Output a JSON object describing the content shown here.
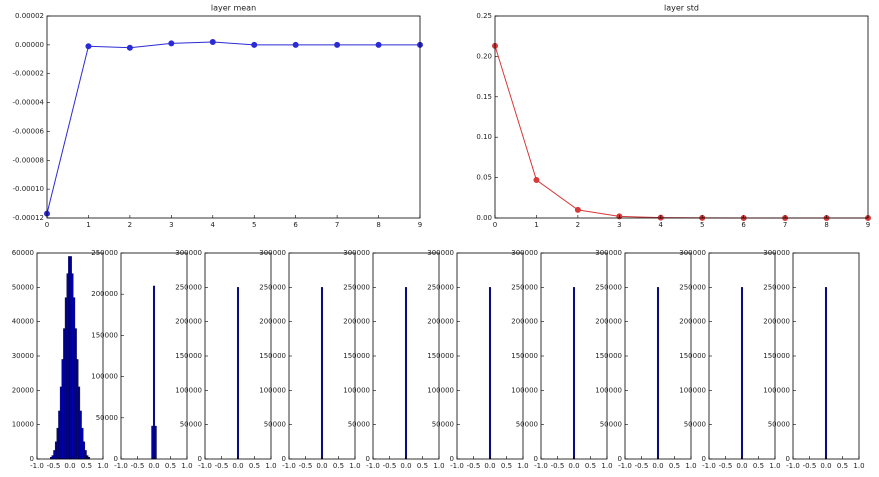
{
  "chart_data": [
    {
      "type": "line",
      "title": "layer mean",
      "color": "#2b2bd6",
      "x": [
        0,
        1,
        2,
        3,
        4,
        5,
        6,
        7,
        8,
        9
      ],
      "values": [
        -0.000117,
        -1e-06,
        -2e-06,
        1e-06,
        2e-06,
        0,
        0,
        0,
        0,
        0
      ],
      "xlim": [
        0,
        9
      ],
      "xticks": [
        0,
        1,
        2,
        3,
        4,
        5,
        6,
        7,
        8,
        9
      ],
      "ylim": [
        -0.00012,
        2e-05
      ],
      "yticks": [
        {
          "value": -0.00012,
          "label": "-0.00012"
        },
        {
          "value": -0.0001,
          "label": "-0.00010"
        },
        {
          "value": -8e-05,
          "label": "-0.00008"
        },
        {
          "value": -6e-05,
          "label": "-0.00006"
        },
        {
          "value": -4e-05,
          "label": "-0.00004"
        },
        {
          "value": -2e-05,
          "label": "-0.00002"
        },
        {
          "value": 0,
          "label": "0.00000"
        },
        {
          "value": 2e-05,
          "label": "0.00002"
        }
      ]
    },
    {
      "type": "line",
      "title": "layer std",
      "color": "#d63a3a",
      "x": [
        0,
        1,
        2,
        3,
        4,
        5,
        6,
        7,
        8,
        9
      ],
      "values": [
        0.213,
        0.047,
        0.01,
        0.002,
        0.0005,
        0.0001,
        0,
        0,
        0,
        0
      ],
      "xlim": [
        0,
        9
      ],
      "xticks": [
        0,
        1,
        2,
        3,
        4,
        5,
        6,
        7,
        8,
        9
      ],
      "ylim": [
        0,
        0.25
      ],
      "yticks": [
        {
          "value": 0,
          "label": "0.00"
        },
        {
          "value": 0.05,
          "label": "0.05"
        },
        {
          "value": 0.1,
          "label": "0.10"
        },
        {
          "value": 0.15,
          "label": "0.15"
        },
        {
          "value": 0.2,
          "label": "0.20"
        },
        {
          "value": 0.25,
          "label": "0.25"
        }
      ]
    },
    {
      "type": "histogram",
      "color": "#0000b0",
      "bins": [
        -0.6,
        -0.55,
        -0.5,
        -0.45,
        -0.4,
        -0.35,
        -0.3,
        -0.25,
        -0.2,
        -0.15,
        -0.1,
        -0.05,
        0,
        0.05,
        0.1,
        0.15,
        0.2,
        0.25,
        0.3,
        0.35,
        0.4,
        0.45,
        0.5,
        0.55,
        0.6
      ],
      "values": [
        500,
        1000,
        2500,
        5000,
        9000,
        14000,
        21000,
        29000,
        38000,
        47000,
        54000,
        59000,
        59000,
        54000,
        47000,
        38000,
        29000,
        21000,
        14000,
        9000,
        5000,
        2500,
        1000,
        500
      ],
      "xlim": [
        -1,
        1
      ],
      "xticks": [
        {
          "value": -1,
          "label": "-1.0"
        },
        {
          "value": -0.5,
          "label": "-0.5"
        },
        {
          "value": 0,
          "label": "0.0"
        },
        0.5,
        {
          "value": 1,
          "label": "1.0"
        }
      ],
      "ylim": [
        0,
        60000
      ],
      "yticks": [
        0,
        10000,
        20000,
        30000,
        40000,
        50000,
        60000
      ]
    },
    {
      "type": "histogram",
      "color": "#0000b0",
      "bins": [
        -0.075,
        -0.025,
        0.025,
        0.075
      ],
      "values": [
        40000,
        210000,
        40000
      ],
      "xlim": [
        -1,
        1
      ],
      "xticks": [
        {
          "value": -1,
          "label": "-1.0"
        },
        {
          "value": -0.5,
          "label": "-0.5"
        },
        {
          "value": 0,
          "label": "0.0"
        },
        0.5,
        {
          "value": 1,
          "label": "1.0"
        }
      ],
      "ylim": [
        0,
        250000
      ],
      "yticks": [
        0,
        50000,
        100000,
        150000,
        200000,
        250000
      ]
    },
    {
      "type": "histogram",
      "color": "#0000b0",
      "bins": [
        -0.025,
        0.025
      ],
      "values": [
        250000
      ],
      "xlim": [
        -1,
        1
      ],
      "xticks": [
        {
          "value": -1,
          "label": "-1.0"
        },
        {
          "value": -0.5,
          "label": "-0.5"
        },
        {
          "value": 0,
          "label": "0.0"
        },
        0.5,
        {
          "value": 1,
          "label": "1.0"
        }
      ],
      "ylim": [
        0,
        300000
      ],
      "yticks": [
        0,
        50000,
        100000,
        150000,
        200000,
        250000,
        300000
      ]
    },
    {
      "type": "histogram",
      "color": "#0000b0",
      "bins": [
        -0.025,
        0.025
      ],
      "values": [
        250000
      ],
      "xlim": [
        -1,
        1
      ],
      "xticks": [
        {
          "value": -1,
          "label": "-1.0"
        },
        {
          "value": -0.5,
          "label": "-0.5"
        },
        {
          "value": 0,
          "label": "0.0"
        },
        0.5,
        {
          "value": 1,
          "label": "1.0"
        }
      ],
      "ylim": [
        0,
        300000
      ],
      "yticks": [
        0,
        50000,
        100000,
        150000,
        200000,
        250000,
        300000
      ]
    },
    {
      "type": "histogram",
      "color": "#0000b0",
      "bins": [
        -0.025,
        0.025
      ],
      "values": [
        250000
      ],
      "xlim": [
        -1,
        1
      ],
      "xticks": [
        {
          "value": -1,
          "label": "-1.0"
        },
        {
          "value": -0.5,
          "label": "-0.5"
        },
        {
          "value": 0,
          "label": "0.0"
        },
        0.5,
        {
          "value": 1,
          "label": "1.0"
        }
      ],
      "ylim": [
        0,
        300000
      ],
      "yticks": [
        0,
        50000,
        100000,
        150000,
        200000,
        250000,
        300000
      ]
    },
    {
      "type": "histogram",
      "color": "#0000b0",
      "bins": [
        -0.025,
        0.025
      ],
      "values": [
        250000
      ],
      "xlim": [
        -1,
        1
      ],
      "xticks": [
        {
          "value": -1,
          "label": "-1.0"
        },
        {
          "value": -0.5,
          "label": "-0.5"
        },
        {
          "value": 0,
          "label": "0.0"
        },
        0.5,
        {
          "value": 1,
          "label": "1.0"
        }
      ],
      "ylim": [
        0,
        300000
      ],
      "yticks": [
        0,
        50000,
        100000,
        150000,
        200000,
        250000,
        300000
      ]
    },
    {
      "type": "histogram",
      "color": "#0000b0",
      "bins": [
        -0.025,
        0.025
      ],
      "values": [
        250000
      ],
      "xlim": [
        -1,
        1
      ],
      "xticks": [
        {
          "value": -1,
          "label": "-1.0"
        },
        {
          "value": -0.5,
          "label": "-0.5"
        },
        {
          "value": 0,
          "label": "0.0"
        },
        0.5,
        {
          "value": 1,
          "label": "1.0"
        }
      ],
      "ylim": [
        0,
        300000
      ],
      "yticks": [
        0,
        50000,
        100000,
        150000,
        200000,
        250000,
        300000
      ]
    },
    {
      "type": "histogram",
      "color": "#0000b0",
      "bins": [
        -0.025,
        0.025
      ],
      "values": [
        250000
      ],
      "xlim": [
        -1,
        1
      ],
      "xticks": [
        {
          "value": -1,
          "label": "-1.0"
        },
        {
          "value": -0.5,
          "label": "-0.5"
        },
        {
          "value": 0,
          "label": "0.0"
        },
        0.5,
        {
          "value": 1,
          "label": "1.0"
        }
      ],
      "ylim": [
        0,
        300000
      ],
      "yticks": [
        0,
        50000,
        100000,
        150000,
        200000,
        250000,
        300000
      ]
    },
    {
      "type": "histogram",
      "color": "#0000b0",
      "bins": [
        -0.025,
        0.025
      ],
      "values": [
        250000
      ],
      "xlim": [
        -1,
        1
      ],
      "xticks": [
        {
          "value": -1,
          "label": "-1.0"
        },
        {
          "value": -0.5,
          "label": "-0.5"
        },
        {
          "value": 0,
          "label": "0.0"
        },
        0.5,
        {
          "value": 1,
          "label": "1.0"
        }
      ],
      "ylim": [
        0,
        300000
      ],
      "yticks": [
        0,
        50000,
        100000,
        150000,
        200000,
        250000,
        300000
      ]
    },
    {
      "type": "histogram",
      "color": "#0000b0",
      "bins": [
        -0.025,
        0.025
      ],
      "values": [
        250000
      ],
      "xlim": [
        -1,
        1
      ],
      "xticks": [
        {
          "value": -1,
          "label": "-1.0"
        },
        {
          "value": -0.5,
          "label": "-0.5"
        },
        {
          "value": 0,
          "label": "0.0"
        },
        0.5,
        {
          "value": 1,
          "label": "1.0"
        }
      ],
      "ylim": [
        0,
        300000
      ],
      "yticks": [
        0,
        50000,
        100000,
        150000,
        200000,
        250000,
        300000
      ]
    }
  ]
}
